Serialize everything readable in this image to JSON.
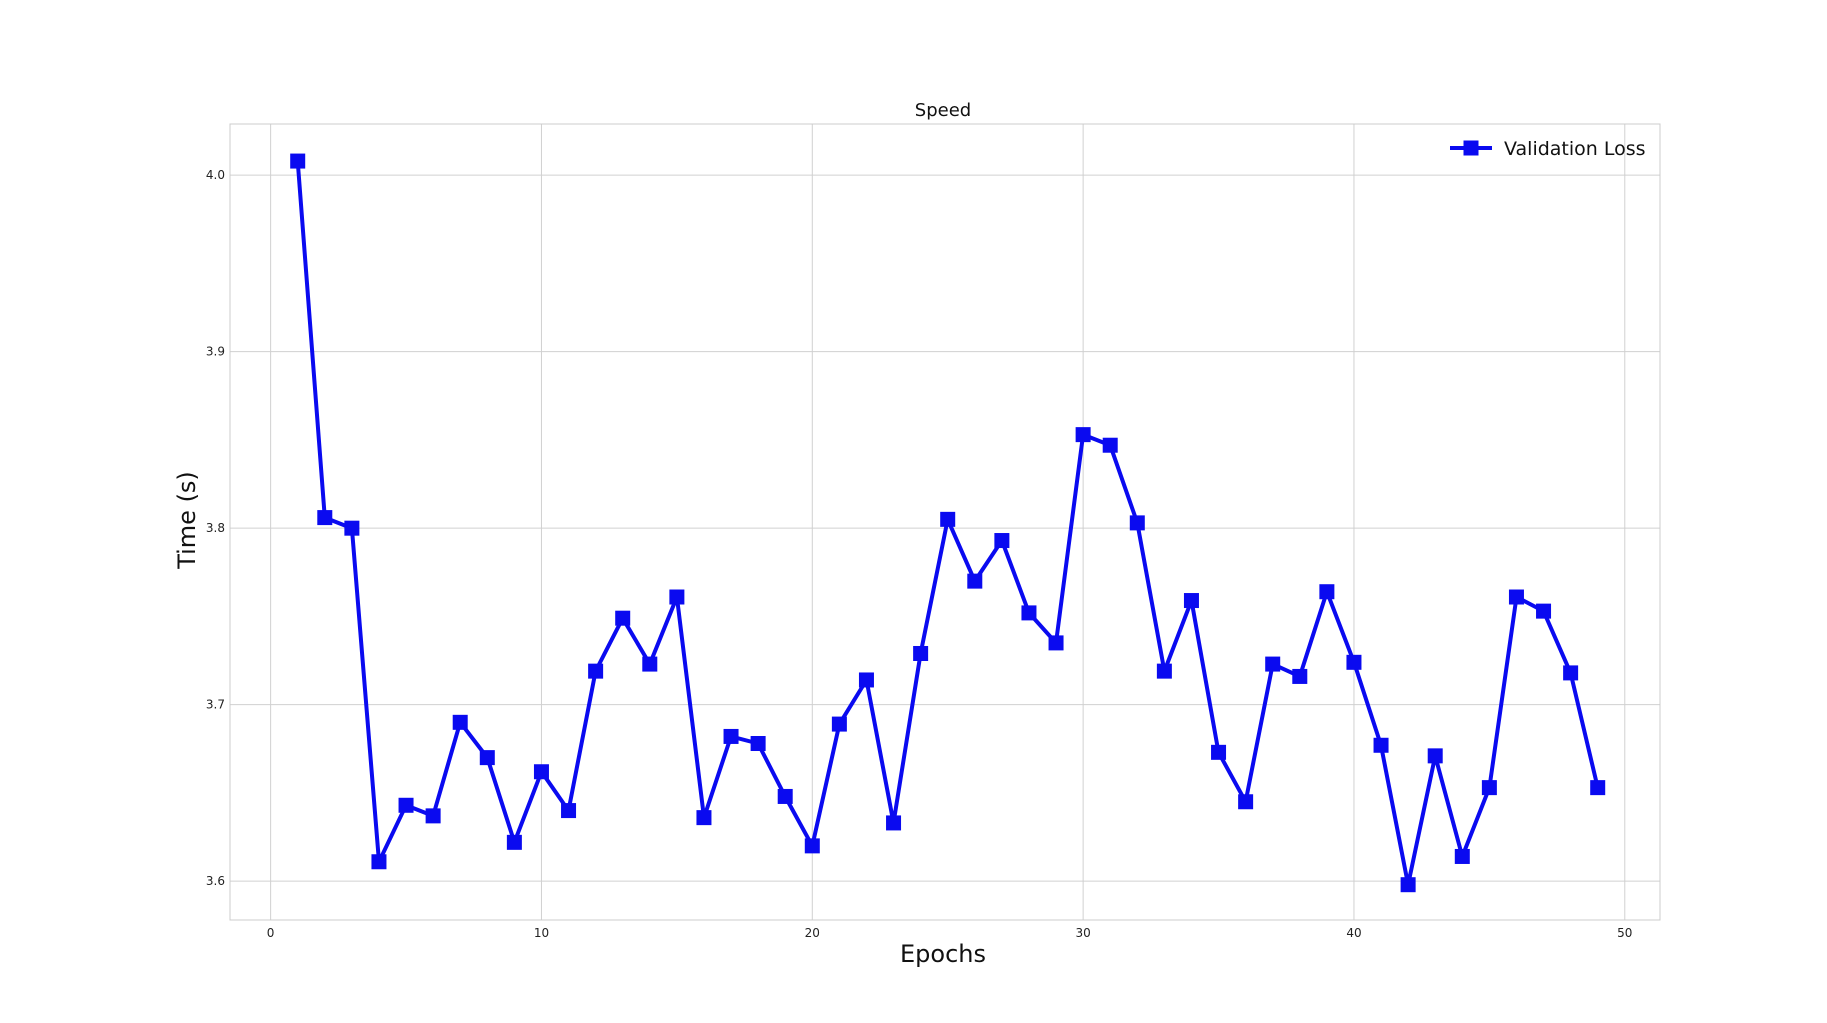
{
  "chart_data": {
    "type": "line",
    "title": "Speed",
    "xlabel": "Epochs",
    "ylabel": "Time (s)",
    "xlim": [
      -1.5,
      51.3
    ],
    "ylim": [
      3.578,
      4.029
    ],
    "xticks": [
      0,
      10,
      20,
      30,
      40,
      50
    ],
    "yticks": [
      3.6,
      3.7,
      3.8,
      3.9,
      4.0
    ],
    "xtick_labels": [
      "0",
      "10",
      "20",
      "30",
      "40",
      "50"
    ],
    "ytick_labels": [
      "3.6",
      "3.7",
      "3.8",
      "3.9",
      "4.0"
    ],
    "grid": true,
    "legend_position": "top-right",
    "colors": {
      "series": "#0a0af0",
      "grid": "#d0d0d0",
      "frame": "#cccccc"
    },
    "series": [
      {
        "name": "Validation Loss",
        "marker": "square",
        "x": [
          1,
          2,
          3,
          4,
          5,
          6,
          7,
          8,
          9,
          10,
          11,
          12,
          13,
          14,
          15,
          16,
          17,
          18,
          19,
          20,
          21,
          22,
          23,
          24,
          25,
          26,
          27,
          28,
          29,
          30,
          31,
          32,
          33,
          34,
          35,
          36,
          37,
          38,
          39,
          40,
          41,
          42,
          43,
          44,
          45,
          46,
          47,
          48,
          49
        ],
        "values": [
          4.008,
          3.806,
          3.8,
          3.611,
          3.643,
          3.637,
          3.69,
          3.67,
          3.622,
          3.662,
          3.64,
          3.719,
          3.749,
          3.723,
          3.761,
          3.636,
          3.682,
          3.678,
          3.648,
          3.62,
          3.689,
          3.714,
          3.633,
          3.729,
          3.805,
          3.77,
          3.793,
          3.752,
          3.735,
          3.853,
          3.847,
          3.803,
          3.719,
          3.759,
          3.673,
          3.645,
          3.723,
          3.716,
          3.764,
          3.724,
          3.677,
          3.598,
          3.671,
          3.614,
          3.653,
          3.761,
          3.753,
          3.718,
          3.653
        ]
      }
    ]
  }
}
